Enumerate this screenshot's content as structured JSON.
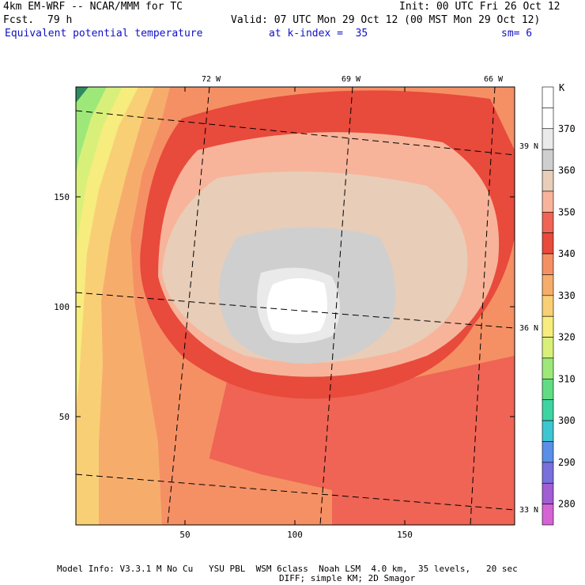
{
  "header": {
    "title": "4km EM-WRF -- NCAR/MMM for TC",
    "init": "Init: 00 UTC Fri 26 Oct 12",
    "fcst_label": "Fcst.",
    "fcst_value": "79 h",
    "valid": "Valid: 07 UTC Mon 29 Oct 12 (00 MST Mon 29 Oct 12)",
    "field": "Equivalent potential temperature",
    "level": "at k-index =  35",
    "smoothing": "sm= 6"
  },
  "map": {
    "lon_labels": [
      "72 W",
      "69 W",
      "66 W"
    ],
    "lat_labels": [
      "39 N",
      "36 N",
      "33 N"
    ],
    "x_ticks": [
      "50",
      "100",
      "150"
    ],
    "y_ticks": [
      "50",
      "100",
      "150"
    ]
  },
  "colorbar": {
    "unit": "K",
    "levels": [
      {
        "label": "",
        "color": "#ffffff"
      },
      {
        "label": "370",
        "color": "#ffffff"
      },
      {
        "label": "",
        "color": "#eaeaea"
      },
      {
        "label": "360",
        "color": "#cfcfcf"
      },
      {
        "label": "",
        "color": "#e8cdb8"
      },
      {
        "label": "350",
        "color": "#f7b49a"
      },
      {
        "label": "",
        "color": "#ef6454"
      },
      {
        "label": "340",
        "color": "#e84a3c"
      },
      {
        "label": "",
        "color": "#f59064"
      },
      {
        "label": "330",
        "color": "#f6ad6c"
      },
      {
        "label": "",
        "color": "#f9cf76"
      },
      {
        "label": "320",
        "color": "#f7ec7e"
      },
      {
        "label": "",
        "color": "#d8f07a"
      },
      {
        "label": "310",
        "color": "#9ee87a"
      },
      {
        "label": "",
        "color": "#62dc84"
      },
      {
        "label": "300",
        "color": "#3ed4a2"
      },
      {
        "label": "",
        "color": "#3cc6d2"
      },
      {
        "label": "290",
        "color": "#5a8ee8"
      },
      {
        "label": "",
        "color": "#7a70dc"
      },
      {
        "label": "280",
        "color": "#a05ed2"
      },
      {
        "label": "",
        "color": "#d464d4"
      }
    ]
  },
  "footer": {
    "line1": "Model Info: V3.3.1 M No Cu   YSU PBL  WSM 6class  Noah LSM  4.0 km,  35 levels,   20 sec",
    "line2": "DIFF; simple KM; 2D Smagor"
  }
}
